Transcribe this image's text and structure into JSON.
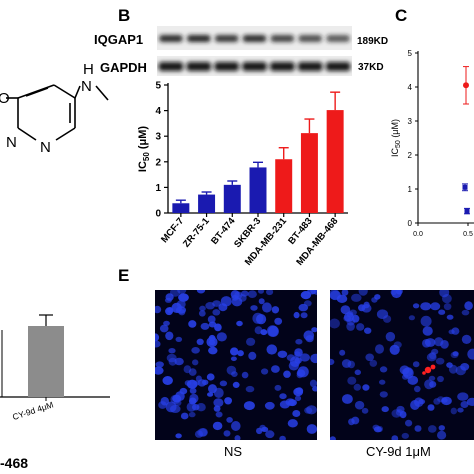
{
  "panels": {
    "B": "B",
    "C": "C",
    "E": "E"
  },
  "molecule": {
    "atom_o": "O",
    "atom_h": "H",
    "atom_n_top": "N",
    "atom_n_left": "N",
    "atom_n_right": "N"
  },
  "blot": {
    "row1_label": "IQGAP1",
    "row1_kd": "189KD",
    "row2_label": "GAPDH",
    "row2_kd": "37KD"
  },
  "chart_data": [
    {
      "type": "bar",
      "panel": "B",
      "title": "",
      "xlabel": "",
      "ylabel": "IC50 (μM)",
      "ylabel_main": "IC",
      "ylabel_sub": "50",
      "ylabel_unit": " (μM)",
      "ylim": [
        0,
        5
      ],
      "yticks": [
        0,
        1,
        2,
        3,
        4,
        5
      ],
      "categories": [
        "MCF-7",
        "ZR-75-1",
        "BT-474",
        "SKBR-3",
        "MDA-MB-231",
        "BT-483",
        "MDA-MB-468"
      ],
      "values": [
        0.38,
        0.72,
        1.1,
        1.78,
        2.1,
        3.12,
        4.02
      ],
      "errors": [
        0.12,
        0.1,
        0.15,
        0.2,
        0.45,
        0.55,
        0.7
      ],
      "colors": [
        "#1a1ab0",
        "#1a1ab0",
        "#1a1ab0",
        "#1a1ab0",
        "#ee1a1a",
        "#ee1a1a",
        "#ee1a1a"
      ],
      "grid": false
    },
    {
      "type": "scatter",
      "panel": "C",
      "xlabel": "",
      "ylabel": "IC50 (μM)",
      "ylabel_main": "IC",
      "ylabel_sub": "50",
      "ylabel_unit": " (μM)",
      "ylim": [
        0,
        5
      ],
      "yticks": [
        0,
        1,
        2,
        3,
        4,
        5
      ],
      "xticks": [
        "0.0",
        "0.5"
      ],
      "points": [
        {
          "x": 0.48,
          "y": 4.05,
          "err": 0.55,
          "color": "#ee1a1a"
        },
        {
          "x": 0.47,
          "y": 1.05,
          "err": 0.1,
          "color": "#1a1ab0"
        },
        {
          "x": 0.49,
          "y": 0.35,
          "err": 0.08,
          "color": "#1a1ab0"
        }
      ]
    },
    {
      "type": "bar",
      "panel": "D-partial",
      "categories": [
        "CY-9d 4μM"
      ],
      "values": [
        0.7
      ],
      "errors": [
        0.1
      ],
      "colors": [
        "#8c8c8c"
      ],
      "ylim": [
        0,
        1
      ],
      "caption_partial": "-468"
    }
  ],
  "fluorescence": {
    "left_label": "NS",
    "right_label": "CY-9d 1μM"
  },
  "colors": {
    "blue_bar": "#1a1ab0",
    "red_bar": "#ee1a1a",
    "gray_bar": "#8c8c8c",
    "micro_bg": "#02031a",
    "nucleus": "#2840e8",
    "signal": "#ff2020"
  }
}
